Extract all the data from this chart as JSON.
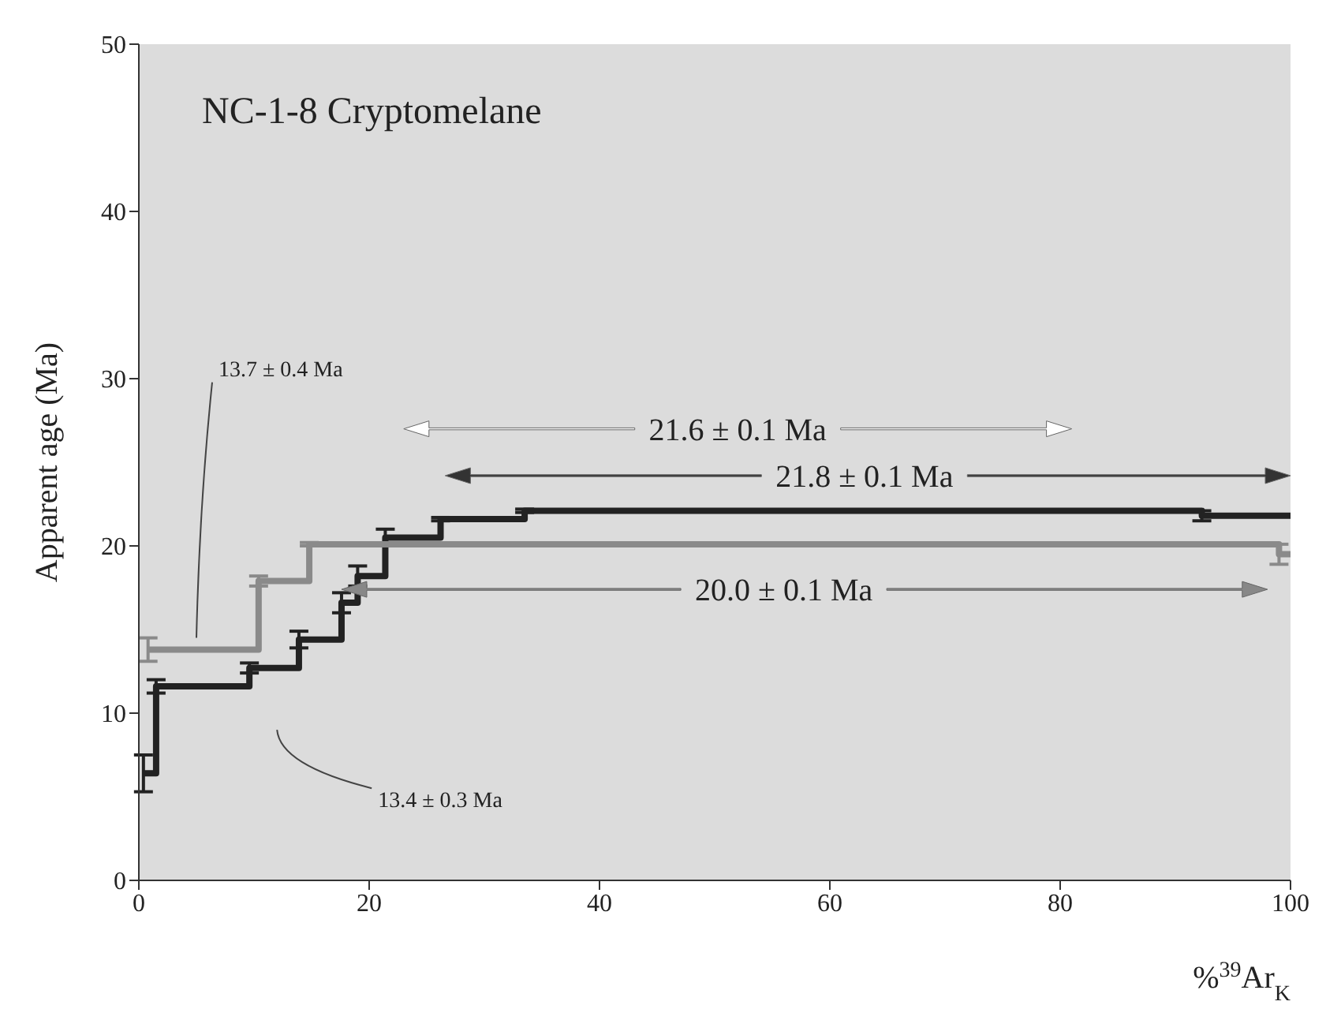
{
  "chart_data": {
    "type": "step",
    "title": "NC-1-8 Cryptomelane",
    "xlabel": "%$^{39}$Ar$_{K}$",
    "ylabel": "Apparent age (Ma)",
    "xlim": [
      0,
      100
    ],
    "xticks": [
      0,
      20,
      40,
      60,
      80,
      100
    ],
    "ylim": [
      0,
      50
    ],
    "yticks": [
      0,
      10,
      20,
      30,
      40,
      50
    ],
    "marker": "none",
    "series": [
      {
        "color": "#222222",
        "x": [
          0.4,
          1.5,
          9.6,
          13.9,
          17.6,
          19,
          21.4,
          26.2,
          33.5,
          92.3,
          100
        ],
        "values": [
          6.4,
          11.6,
          12.7,
          14.4,
          16.6,
          18.2,
          20.5,
          21.6,
          22.1,
          21.8,
          21.8
        ],
        "errors": [
          1.1,
          0.4,
          0.3,
          0.5,
          0.6,
          0.6,
          0.5,
          0.1,
          0.1,
          0.3,
          null
        ]
      },
      {
        "color": "#8a8a8a",
        "x": [
          0.8,
          10.4,
          14.8,
          99,
          100
        ],
        "values": [
          13.8,
          17.9,
          20.1,
          19.5,
          19.5
        ],
        "errors": [
          0.7,
          0.3,
          0.1,
          0.6,
          null
        ]
      }
    ],
    "annotations": [
      "13.7 ± 0.4 Ma",
      "13.4 ± 0.3 Ma",
      "21.6 ± 0.1 Ma",
      "21.8 ± 0.1 Ma",
      "20.0 ± 0.1 Ma"
    ]
  }
}
